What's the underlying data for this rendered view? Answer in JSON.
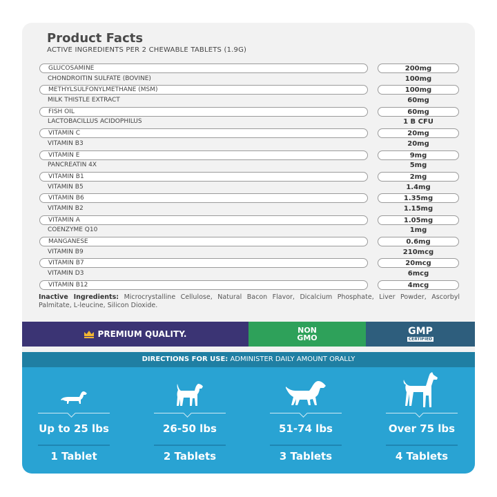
{
  "title": "Product Facts",
  "subtitle": "ACTIVE INGREDIENTS PER 2 CHEWABLE TABLETS (1.9G)",
  "ingredients": [
    {
      "name": "GLUCOSAMINE",
      "amount": "200mg"
    },
    {
      "name": "CHONDROITIN SULFATE (BOVINE)",
      "amount": "100mg"
    },
    {
      "name": "METHYLSULFONYLMETHANE (MSM)",
      "amount": "100mg"
    },
    {
      "name": "MILK THISTLE EXTRACT",
      "amount": "60mg"
    },
    {
      "name": "FISH OIL",
      "amount": "60mg"
    },
    {
      "name": "LACTOBACILLUS ACIDOPHILUS",
      "amount": "1 B CFU"
    },
    {
      "name": "VITAMIN C",
      "amount": "20mg"
    },
    {
      "name": "VITAMIN B3",
      "amount": "20mg"
    },
    {
      "name": "VITAMIN E",
      "amount": "9mg"
    },
    {
      "name": "PANCREATIN 4X",
      "amount": "5mg"
    },
    {
      "name": "VITAMIN B1",
      "amount": "2mg"
    },
    {
      "name": "VITAMIN B5",
      "amount": "1.4mg"
    },
    {
      "name": "VITAMIN B6",
      "amount": "1.35mg"
    },
    {
      "name": "VITAMIN B2",
      "amount": "1.15mg"
    },
    {
      "name": "VITAMIN A",
      "amount": "1.05mg"
    },
    {
      "name": "COENZYME Q10",
      "amount": "1mg"
    },
    {
      "name": "MANGANESE",
      "amount": "0.6mg"
    },
    {
      "name": "VITAMIN B9",
      "amount": "210mcg"
    },
    {
      "name": "VITAMIN B7",
      "amount": "20mcg"
    },
    {
      "name": "VITAMIN D3",
      "amount": "6mcg"
    },
    {
      "name": "VITAMIN B12",
      "amount": "4mcg"
    }
  ],
  "inactive": {
    "label": "Inactive Ingredients:",
    "text": " Microcrystalline Cellulose, Natural Bacon Flavor, Dicalcium Phosphate, Liver Powder, Ascorbyl Palmitate, L-leucine, Silicon Dioxide."
  },
  "badges": {
    "premium": "PREMIUM QUALITY.",
    "non": "NON",
    "gmo": "GMO",
    "gmp": "GMP",
    "certified": "CERTIFIED"
  },
  "directions": {
    "label": "DIRECTIONS FOR USE:",
    "text": " ADMINISTER DAILY AMOUNT ORALLY"
  },
  "dosage": [
    {
      "weight": "Up to 25 lbs",
      "tablets": "1 Tablet",
      "icon": "small-dog-icon"
    },
    {
      "weight": "26-50 lbs",
      "tablets": "2 Tablets",
      "icon": "medium-dog-icon"
    },
    {
      "weight": "51-74 lbs",
      "tablets": "3 Tablets",
      "icon": "large-dog-icon"
    },
    {
      "weight": "Over 75 lbs",
      "tablets": "4 Tablets",
      "icon": "xl-dog-icon"
    }
  ],
  "colors": {
    "card": "#f2f2f2",
    "premium": "#3b3474",
    "nongmo": "#2ea15a",
    "gmp": "#2e5e7d",
    "directions": "#1f7fa3",
    "dosage": "#29a3d3"
  }
}
